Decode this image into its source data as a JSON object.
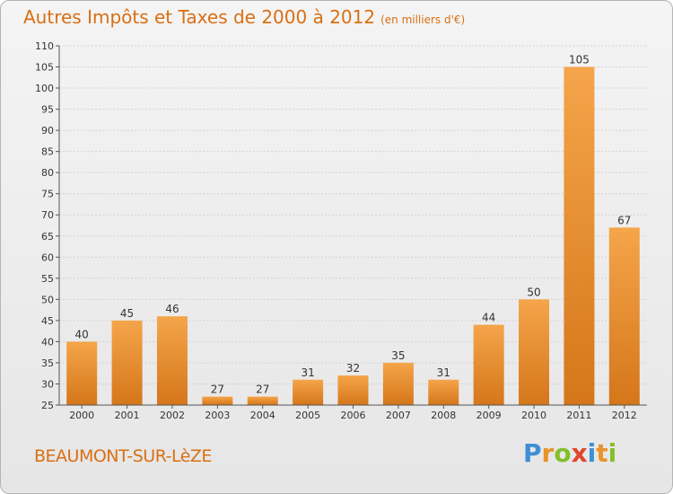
{
  "title": {
    "main": "Autres Impôts et Taxes de 2000 à 2012",
    "unit": "(en milliers d'€)"
  },
  "commune": "BEAUMONT-SUR-LèZE",
  "logo": {
    "letters": [
      {
        "char": "P",
        "color": "#3e8fd4"
      },
      {
        "char": "r",
        "color": "#e9932c"
      },
      {
        "char": "o",
        "color": "#84bf2c"
      },
      {
        "char": "x",
        "color": "#e2452c"
      },
      {
        "char": "i",
        "color": "#3e8fd4"
      },
      {
        "char": "t",
        "color": "#e9932c"
      },
      {
        "char": "i",
        "color": "#84bf2c"
      }
    ]
  },
  "colors": {
    "bar_top": "#f5a54a",
    "bar_bottom": "#d5761a",
    "title": "#d96f14"
  },
  "chart_data": {
    "type": "bar",
    "categories": [
      "2000",
      "2001",
      "2002",
      "2003",
      "2004",
      "2005",
      "2006",
      "2007",
      "2008",
      "2009",
      "2010",
      "2011",
      "2012"
    ],
    "values": [
      40,
      45,
      46,
      27,
      27,
      31,
      32,
      35,
      31,
      44,
      50,
      105,
      67
    ],
    "ylim": [
      25,
      110
    ],
    "yticks": [
      25,
      30,
      35,
      40,
      45,
      50,
      55,
      60,
      65,
      70,
      75,
      80,
      85,
      90,
      95,
      100,
      105,
      110
    ],
    "grid": true
  }
}
